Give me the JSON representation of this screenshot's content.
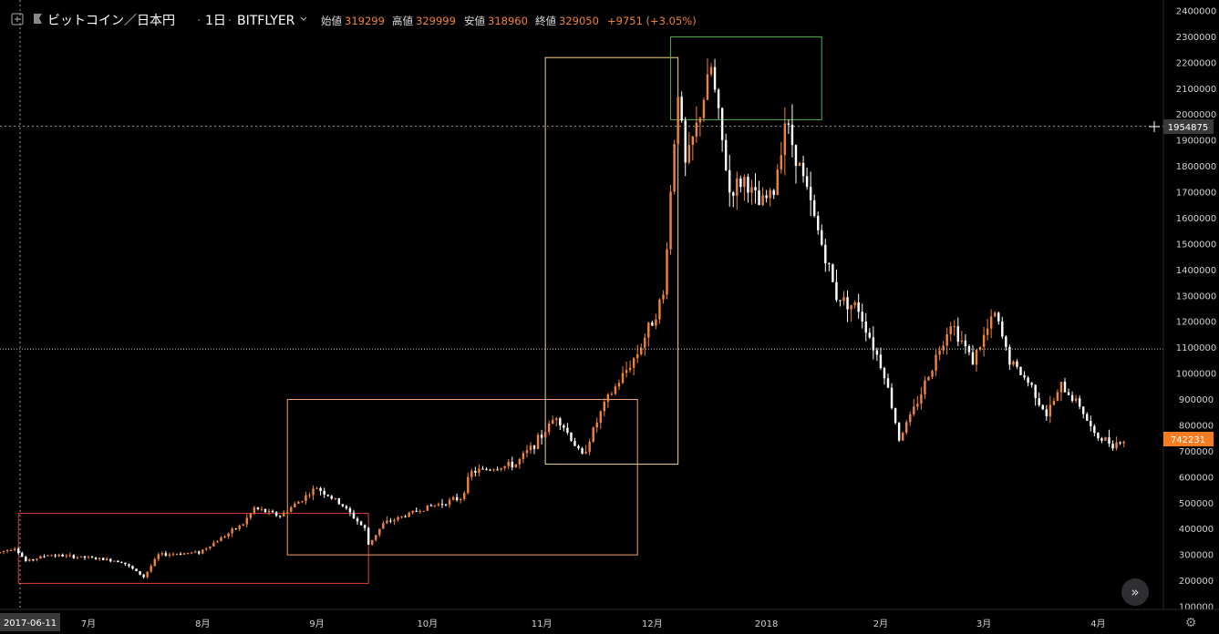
{
  "header": {
    "symbol": "ビットコイン／日本円",
    "interval": "1日",
    "exchange": "BITFLYER",
    "open_label": "始値",
    "open_value": "319299",
    "high_label": "高値",
    "high_value": "329999",
    "low_label": "安値",
    "low_value": "318960",
    "close_label": "終値",
    "close_value": "329050",
    "change": "+9751 (+3.05%)"
  },
  "crosshair": {
    "date_label": "2017-06-11",
    "price_label": "1954875",
    "price_value": 1954875
  },
  "last_price": {
    "label": "742231",
    "value": 742231
  },
  "colors": {
    "background": "#000000",
    "up": "#f0823c",
    "down": "#ffffff",
    "last_price_bg": "#f57c20",
    "axis_text": "#d0d0d0",
    "box_red": "#e0403a",
    "box_orange": "#f2a070",
    "box_yellow": "#f5d598",
    "box_green": "#4caf50"
  },
  "chart_data": {
    "type": "candlestick",
    "ylim": [
      100000,
      2400000
    ],
    "y_ticks": [
      2400000,
      2300000,
      2200000,
      2100000,
      2000000,
      1900000,
      1800000,
      1700000,
      1600000,
      1500000,
      1400000,
      1300000,
      1200000,
      1100000,
      1000000,
      900000,
      800000,
      700000,
      600000,
      500000,
      400000,
      300000,
      200000,
      100000
    ],
    "x_ticks": [
      {
        "label": "7月",
        "date": "2017-07-01"
      },
      {
        "label": "8月",
        "date": "2017-08-01"
      },
      {
        "label": "9月",
        "date": "2017-09-01"
      },
      {
        "label": "10月",
        "date": "2017-10-01"
      },
      {
        "label": "11月",
        "date": "2017-11-01"
      },
      {
        "label": "12月",
        "date": "2017-12-01"
      },
      {
        "label": "2018",
        "date": "2018-01-01"
      },
      {
        "label": "2月",
        "date": "2018-02-01"
      },
      {
        "label": "3月",
        "date": "2018-03-01"
      },
      {
        "label": "4月",
        "date": "2018-04-01"
      }
    ],
    "x_range": [
      "2017-06-07",
      "2018-04-16"
    ],
    "close_keypoints": [
      [
        "2017-06-07",
        310000
      ],
      [
        "2017-06-11",
        329050
      ],
      [
        "2017-06-14",
        275000
      ],
      [
        "2017-06-20",
        300000
      ],
      [
        "2017-06-30",
        290000
      ],
      [
        "2017-07-10",
        275000
      ],
      [
        "2017-07-16",
        215000
      ],
      [
        "2017-07-20",
        300000
      ],
      [
        "2017-07-31",
        310000
      ],
      [
        "2017-08-12",
        420000
      ],
      [
        "2017-08-15",
        480000
      ],
      [
        "2017-08-22",
        450000
      ],
      [
        "2017-09-01",
        560000
      ],
      [
        "2017-09-08",
        490000
      ],
      [
        "2017-09-14",
        400000
      ],
      [
        "2017-09-15",
        340000
      ],
      [
        "2017-09-19",
        420000
      ],
      [
        "2017-09-30",
        480000
      ],
      [
        "2017-10-10",
        520000
      ],
      [
        "2017-10-13",
        620000
      ],
      [
        "2017-10-25",
        650000
      ],
      [
        "2017-11-01",
        760000
      ],
      [
        "2017-11-05",
        840000
      ],
      [
        "2017-11-12",
        680000
      ],
      [
        "2017-11-18",
        880000
      ],
      [
        "2017-11-27",
        1080000
      ],
      [
        "2017-12-04",
        1300000
      ],
      [
        "2017-12-07",
        1900000
      ],
      [
        "2017-12-08",
        2100000
      ],
      [
        "2017-12-10",
        1800000
      ],
      [
        "2017-12-13",
        1950000
      ],
      [
        "2017-12-17",
        2180000
      ],
      [
        "2017-12-22",
        1700000
      ],
      [
        "2017-12-26",
        1750000
      ],
      [
        "2017-12-30",
        1650000
      ],
      [
        "2018-01-03",
        1700000
      ],
      [
        "2018-01-06",
        1980000
      ],
      [
        "2018-01-10",
        1800000
      ],
      [
        "2018-01-16",
        1500000
      ],
      [
        "2018-01-20",
        1300000
      ],
      [
        "2018-01-26",
        1250000
      ],
      [
        "2018-02-02",
        1000000
      ],
      [
        "2018-02-06",
        750000
      ],
      [
        "2018-02-10",
        860000
      ],
      [
        "2018-02-20",
        1200000
      ],
      [
        "2018-02-26",
        1050000
      ],
      [
        "2018-03-04",
        1230000
      ],
      [
        "2018-03-08",
        1050000
      ],
      [
        "2018-03-14",
        950000
      ],
      [
        "2018-03-18",
        840000
      ],
      [
        "2018-03-22",
        950000
      ],
      [
        "2018-03-27",
        880000
      ],
      [
        "2018-03-31",
        760000
      ],
      [
        "2018-04-05",
        730000
      ],
      [
        "2018-04-08",
        742231
      ]
    ],
    "highlight_boxes": [
      {
        "color": "red",
        "from": "2017-06-12",
        "to": "2017-09-15",
        "low": 190000,
        "high": 460000
      },
      {
        "color": "orange",
        "from": "2017-08-24",
        "to": "2017-11-27",
        "low": 300000,
        "high": 900000
      },
      {
        "color": "yellow",
        "from": "2017-11-02",
        "to": "2017-12-08",
        "low": 650000,
        "high": 2220000
      },
      {
        "color": "green",
        "from": "2017-12-06",
        "to": "2018-01-16",
        "low": 1980000,
        "high": 2300000
      }
    ],
    "horizontal_line": 1095000
  }
}
